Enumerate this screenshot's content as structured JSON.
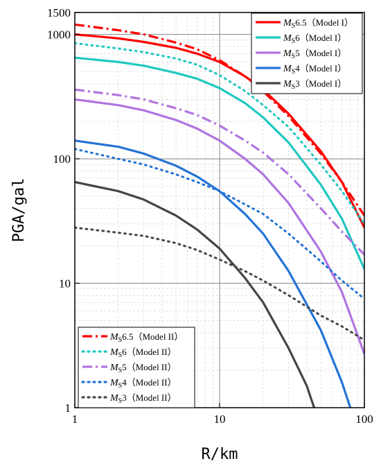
{
  "chart_data": {
    "type": "line",
    "xlabel": "R/km",
    "ylabel": "PGA/gal",
    "xscale": "log",
    "yscale": "log",
    "xlim": [
      1,
      100
    ],
    "ylim": [
      1,
      1500
    ],
    "xticks": [
      "1",
      "10",
      "100"
    ],
    "yticks": [
      "1",
      "10",
      "100",
      "1000",
      "1500"
    ],
    "grid": true,
    "legends": [
      {
        "placement": "top-right",
        "series_indices": [
          0,
          1,
          2,
          3,
          4
        ]
      },
      {
        "placement": "bottom-left",
        "series_indices": [
          5,
          6,
          7,
          8,
          9
        ]
      }
    ],
    "series": [
      {
        "label_prefix": "M",
        "label_sub": "S",
        "label_mag": "6.5",
        "label_model": "（Model I）",
        "color": "#ff0000",
        "style": "solid",
        "x": [
          1,
          2,
          3,
          5,
          7,
          10,
          15,
          20,
          30,
          50,
          70,
          100
        ],
        "y": [
          1000,
          930,
          870,
          780,
          700,
          600,
          460,
          360,
          230,
          115,
          65,
          28
        ]
      },
      {
        "label_prefix": "M",
        "label_sub": "S",
        "label_mag": "6",
        "label_model": "（Model I）",
        "color": "#1fc8c2",
        "style": "solid",
        "x": [
          1,
          2,
          3,
          5,
          7,
          10,
          15,
          20,
          30,
          50,
          70,
          100
        ],
        "y": [
          650,
          600,
          560,
          490,
          440,
          370,
          280,
          215,
          135,
          62,
          33,
          13
        ]
      },
      {
        "label_prefix": "M",
        "label_sub": "S",
        "label_mag": "5",
        "label_model": "（Model I）",
        "color": "#b074e0",
        "style": "solid",
        "x": [
          1,
          2,
          3,
          5,
          7,
          10,
          15,
          20,
          30,
          50,
          70,
          100
        ],
        "y": [
          300,
          270,
          245,
          205,
          175,
          140,
          100,
          75,
          44,
          18,
          8.5,
          2.7
        ]
      },
      {
        "label_prefix": "M",
        "label_sub": "S",
        "label_mag": "4",
        "label_model": "（Model I）",
        "color": "#2373d6",
        "style": "solid",
        "x": [
          1,
          2,
          3,
          5,
          7,
          10,
          15,
          20,
          30,
          50,
          70,
          80
        ],
        "y": [
          140,
          125,
          110,
          88,
          72,
          55,
          36,
          25,
          12.5,
          4.2,
          1.6,
          1
        ]
      },
      {
        "label_prefix": "M",
        "label_sub": "S",
        "label_mag": "3",
        "label_model": "（Model I）",
        "color": "#454545",
        "style": "solid",
        "x": [
          1,
          2,
          3,
          5,
          7,
          10,
          15,
          20,
          30,
          40,
          45
        ],
        "y": [
          65,
          55,
          47,
          35,
          27,
          19,
          11,
          7,
          3,
          1.5,
          1
        ]
      },
      {
        "label_prefix": "M",
        "label_sub": "S",
        "label_mag": "6.5",
        "label_model": "（Model II）",
        "color": "#ff0000",
        "style": "dashdot",
        "x": [
          1,
          2,
          3,
          5,
          7,
          10,
          15,
          20,
          30,
          50,
          70,
          100
        ],
        "y": [
          1200,
          1080,
          1000,
          860,
          760,
          620,
          460,
          350,
          220,
          110,
          65,
          35
        ]
      },
      {
        "label_prefix": "M",
        "label_sub": "S",
        "label_mag": "6",
        "label_model": "（Model II）",
        "color": "#1fc8c2",
        "style": "dotted",
        "x": [
          1,
          2,
          3,
          5,
          7,
          10,
          15,
          20,
          30,
          50,
          70,
          100
        ],
        "y": [
          850,
          770,
          720,
          640,
          570,
          470,
          350,
          270,
          180,
          90,
          55,
          30
        ]
      },
      {
        "label_prefix": "M",
        "label_sub": "S",
        "label_mag": "5",
        "label_model": "（Model II）",
        "color": "#b074e0",
        "style": "dashdot",
        "x": [
          1,
          2,
          3,
          5,
          7,
          10,
          15,
          20,
          30,
          50,
          70,
          100
        ],
        "y": [
          360,
          325,
          300,
          255,
          225,
          185,
          140,
          112,
          75,
          40,
          26,
          17
        ]
      },
      {
        "label_prefix": "M",
        "label_sub": "S",
        "label_mag": "4",
        "label_model": "（Model II）",
        "color": "#2373d6",
        "style": "dotted",
        "x": [
          1,
          2,
          3,
          5,
          7,
          10,
          15,
          20,
          30,
          50,
          70,
          100
        ],
        "y": [
          120,
          100,
          90,
          75,
          65,
          55,
          43,
          36,
          25,
          15,
          10.5,
          7.5
        ]
      },
      {
        "label_prefix": "M",
        "label_sub": "S",
        "label_mag": "3",
        "label_model": "（Model II）",
        "color": "#454545",
        "style": "dotted",
        "x": [
          1,
          2,
          3,
          5,
          7,
          10,
          15,
          20,
          30,
          50,
          70,
          100
        ],
        "y": [
          28,
          25.5,
          24,
          21,
          18.5,
          15.5,
          12.5,
          10.5,
          8,
          5.5,
          4.5,
          3.5
        ]
      }
    ]
  }
}
